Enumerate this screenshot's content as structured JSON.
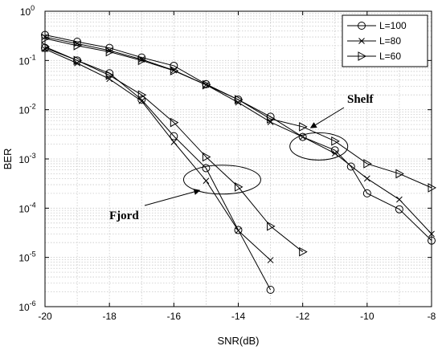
{
  "chart_data": {
    "type": "line",
    "xlabel": "SNR(dB)",
    "ylabel": "BER",
    "xlim": [
      -20,
      -8
    ],
    "ylim": [
      1e-06,
      1
    ],
    "yscale": "log",
    "grid": true,
    "legend_placement": "top-right",
    "x_ticks": [
      "-20",
      "-18",
      "-16",
      "-14",
      "-12",
      "-10",
      "-8"
    ],
    "y_ticks": [
      {
        "base": "10",
        "exp": "0"
      },
      {
        "base": "10",
        "exp": "-1"
      },
      {
        "base": "10",
        "exp": "-2"
      },
      {
        "base": "10",
        "exp": "-3"
      },
      {
        "base": "10",
        "exp": "-4"
      },
      {
        "base": "10",
        "exp": "-5"
      },
      {
        "base": "10",
        "exp": "-6"
      }
    ],
    "series": [
      {
        "name": "L=100",
        "marker": "circle",
        "groups": [
          {
            "label": "Shelf",
            "points": [
              [
                -20,
                0.33
              ],
              [
                -19,
                0.24
              ],
              [
                -18,
                0.18
              ],
              [
                -17,
                0.115
              ],
              [
                -16,
                0.078
              ],
              [
                -15,
                0.033
              ],
              [
                -14,
                0.016
              ],
              [
                -13,
                0.0072
              ],
              [
                -12,
                0.0028
              ],
              [
                -11,
                0.0015
              ],
              [
                -10.5,
                0.0007
              ],
              [
                -10,
                0.0002
              ],
              [
                -9,
                9.5e-05
              ],
              [
                -8,
                2.2e-05
              ]
            ]
          },
          {
            "label": "Fjord",
            "points": [
              [
                -20,
                0.18
              ],
              [
                -19,
                0.1
              ],
              [
                -18,
                0.055
              ],
              [
                -17,
                0.016
              ],
              [
                -16,
                0.0029
              ],
              [
                -15,
                0.00065
              ],
              [
                -14,
                3.6e-05
              ],
              [
                -13,
                2.2e-06
              ]
            ]
          }
        ]
      },
      {
        "name": "L=80",
        "marker": "x",
        "groups": [
          {
            "label": "Shelf",
            "points": [
              [
                -20,
                0.3
              ],
              [
                -19,
                0.22
              ],
              [
                -18,
                0.16
              ],
              [
                -17,
                0.105
              ],
              [
                -16,
                0.063
              ],
              [
                -15,
                0.032
              ],
              [
                -14,
                0.014
              ],
              [
                -13,
                0.0056
              ],
              [
                -12,
                0.0028
              ],
              [
                -11,
                0.0013
              ],
              [
                -10,
                0.0004
              ],
              [
                -9,
                0.00015
              ],
              [
                -8,
                3e-05
              ]
            ]
          },
          {
            "label": "Fjord",
            "points": [
              [
                -20,
                0.17
              ],
              [
                -19,
                0.088
              ],
              [
                -18,
                0.042
              ],
              [
                -17,
                0.015
              ],
              [
                -16,
                0.0022
              ],
              [
                -15,
                0.00036
              ],
              [
                -14,
                3.5e-05
              ],
              [
                -13,
                8.8e-06
              ]
            ]
          }
        ]
      },
      {
        "name": "L=60",
        "marker": "triangle-right",
        "groups": [
          {
            "label": "Shelf",
            "points": [
              [
                -20,
                0.28
              ],
              [
                -19,
                0.2
              ],
              [
                -18,
                0.15
              ],
              [
                -17,
                0.1
              ],
              [
                -16,
                0.062
              ],
              [
                -15,
                0.032
              ],
              [
                -14,
                0.016
              ],
              [
                -13,
                0.0065
              ],
              [
                -12,
                0.0045
              ],
              [
                -11,
                0.0023
              ],
              [
                -10,
                0.0008
              ],
              [
                -9,
                0.0005
              ],
              [
                -8,
                0.00026
              ]
            ]
          },
          {
            "label": "Fjord",
            "points": [
              [
                -20,
                0.19
              ],
              [
                -19,
                0.1
              ],
              [
                -18,
                0.05
              ],
              [
                -17,
                0.02
              ],
              [
                -16,
                0.0055
              ],
              [
                -15,
                0.0011
              ],
              [
                -14,
                0.00027
              ],
              [
                -13,
                4.3e-05
              ],
              [
                -12,
                1.3e-05
              ]
            ]
          }
        ]
      }
    ],
    "annotations": [
      {
        "text": "Shelf",
        "ellipse_center": [
          -11.5,
          0.0018
        ],
        "arrow_to": [
          -11.75,
          0.0043
        ]
      },
      {
        "text": "Fjord",
        "ellipse_center": [
          -14.5,
          0.00038
        ],
        "arrow_to": [
          -15.2,
          0.00023
        ]
      }
    ]
  }
}
